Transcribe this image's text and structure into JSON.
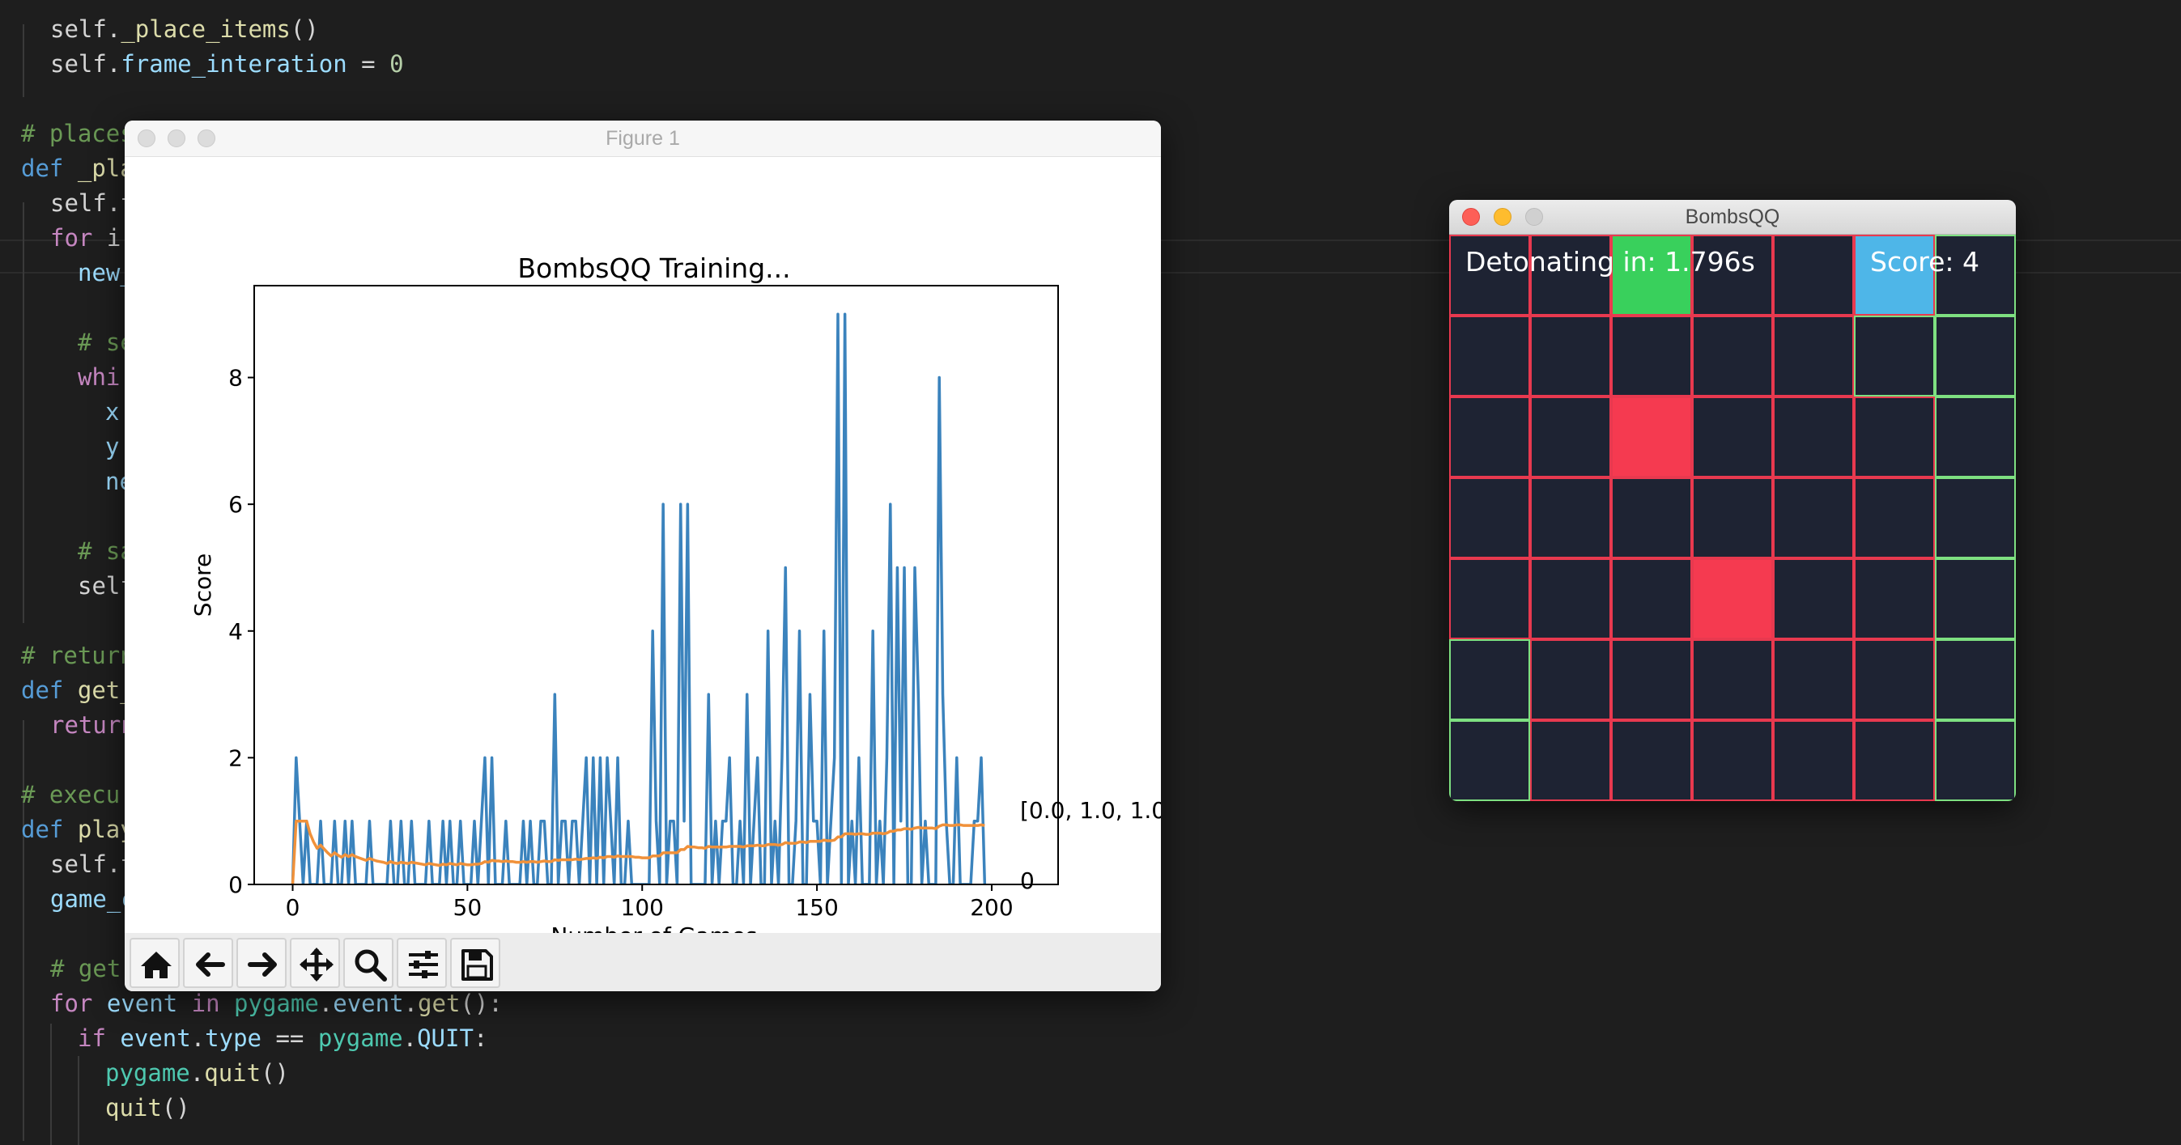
{
  "editor": {
    "lines": [
      [
        [
          "t-self",
          "self"
        ],
        [
          "t-op",
          "."
        ],
        [
          "t-fn",
          "_place_items"
        ],
        [
          "t-op",
          "()"
        ]
      ],
      [
        [
          "t-self",
          "self"
        ],
        [
          "t-op",
          "."
        ],
        [
          "t-var",
          "frame_interation"
        ],
        [
          "t-op",
          " = "
        ],
        [
          "t-num",
          "0"
        ]
      ],
      [],
      [
        [
          "t-cm",
          "# places"
        ]
      ],
      [
        [
          "t-kw",
          "def"
        ],
        [
          "t-op",
          " "
        ],
        [
          "t-fn",
          "_pla"
        ]
      ],
      [
        [
          "t-self",
          "self"
        ],
        [
          "t-op",
          ".t"
        ]
      ],
      [
        [
          "t-ctl",
          "for"
        ],
        [
          "t-op",
          " i"
        ]
      ],
      [
        [
          "t-var",
          "new_"
        ]
      ],
      [],
      [
        [
          "t-cm",
          "# se"
        ]
      ],
      [
        [
          "t-ctl",
          "whi"
        ]
      ],
      [
        [
          "t-var",
          "x"
        ]
      ],
      [
        [
          "t-var",
          "y"
        ]
      ],
      [
        [
          "t-var",
          "ne"
        ]
      ],
      [],
      [
        [
          "t-cm",
          "# sa"
        ]
      ],
      [
        [
          "t-self",
          "self"
        ]
      ],
      [],
      [
        [
          "t-cm",
          "# return"
        ]
      ],
      [
        [
          "t-kw",
          "def"
        ],
        [
          "t-op",
          " "
        ],
        [
          "t-fn",
          "get_"
        ]
      ],
      [
        [
          "t-ctl",
          "return"
        ]
      ],
      [],
      [
        [
          "t-cm",
          "# execu"
        ]
      ],
      [
        [
          "t-kw",
          "def"
        ],
        [
          "t-op",
          " "
        ],
        [
          "t-fn",
          "play"
        ]
      ],
      [
        [
          "t-self",
          "self"
        ],
        [
          "t-op",
          ".t"
        ]
      ],
      [
        [
          "t-var",
          "game_c"
        ]
      ],
      [],
      [
        [
          "t-cm",
          "# get user input"
        ]
      ],
      [
        [
          "t-ctl",
          "for"
        ],
        [
          "t-op",
          " "
        ],
        [
          "t-var",
          "event"
        ],
        [
          "t-op",
          " "
        ],
        [
          "t-ctl",
          "in"
        ],
        [
          "t-op",
          " "
        ],
        [
          "t-cls",
          "pygame"
        ],
        [
          "t-op",
          "."
        ],
        [
          "t-var",
          "event"
        ],
        [
          "t-op",
          "."
        ],
        [
          "t-fn",
          "get"
        ],
        [
          "t-op",
          "():"
        ]
      ],
      [
        [
          "t-ctl",
          "if"
        ],
        [
          "t-op",
          " "
        ],
        [
          "t-var",
          "event"
        ],
        [
          "t-op",
          "."
        ],
        [
          "t-var",
          "type"
        ],
        [
          "t-op",
          " == "
        ],
        [
          "t-cls",
          "pygame"
        ],
        [
          "t-op",
          "."
        ],
        [
          "t-var",
          "QUIT"
        ],
        [
          "t-op",
          ":"
        ]
      ],
      [
        [
          "t-cls",
          "pygame"
        ],
        [
          "t-op",
          "."
        ],
        [
          "t-fn",
          "quit"
        ],
        [
          "t-op",
          "()"
        ]
      ],
      [
        [
          "t-fn",
          "quit"
        ],
        [
          "t-op",
          "()"
        ]
      ]
    ]
  },
  "figure": {
    "window_title": "Figure 1",
    "toolbar": [
      "home-icon",
      "back-arrow-icon",
      "forward-arrow-icon",
      "pan-icon",
      "zoom-icon",
      "configure-subplots-icon",
      "save-icon"
    ]
  },
  "chart_data": {
    "type": "line",
    "title": "BombsQQ Training...",
    "xlabel": "Number of Games",
    "ylabel": "Score",
    "xlim": [
      -11,
      219
    ],
    "ylim": [
      0,
      9.45
    ],
    "xticks": [
      0,
      50,
      100,
      150,
      200
    ],
    "yticks": [
      0,
      2,
      4,
      6,
      8
    ],
    "annotations": [
      "[0.0, 1.0, 1.0",
      "0"
    ],
    "series": [
      {
        "color": "#3b83bd",
        "values": [
          0,
          2,
          1,
          0,
          1,
          0,
          0,
          0,
          1,
          0,
          0,
          0,
          1,
          0,
          0,
          1,
          0,
          1,
          0,
          0,
          0,
          0,
          1,
          0,
          0,
          0,
          0,
          0,
          1,
          0,
          0,
          1,
          0,
          0,
          1,
          0,
          0,
          0,
          0,
          1,
          0,
          0,
          0,
          1,
          0,
          1,
          0,
          0,
          1,
          0,
          0,
          0,
          1,
          0,
          1,
          2,
          0,
          2,
          0,
          0,
          0,
          1,
          0,
          0,
          0,
          0,
          1,
          0,
          1,
          0,
          0,
          1,
          1,
          0,
          0,
          3,
          0,
          1,
          1,
          0,
          1,
          1,
          0,
          1,
          2,
          0,
          2,
          0,
          2,
          0,
          2,
          1,
          0,
          2,
          0,
          0,
          1,
          0,
          0,
          0,
          0,
          0,
          0,
          4,
          1,
          0,
          6,
          0,
          1,
          1,
          0,
          6,
          1,
          6,
          0,
          0,
          0,
          0,
          0,
          3,
          0,
          1,
          0,
          1,
          1,
          2,
          0,
          0,
          1,
          0,
          3,
          0,
          1,
          2,
          0,
          0,
          4,
          0,
          1,
          0,
          2,
          5,
          0,
          0,
          1,
          4,
          0,
          0,
          3,
          1,
          1,
          0,
          4,
          0,
          1,
          2,
          9,
          0,
          9,
          0,
          1,
          0,
          2,
          0,
          0,
          0,
          4,
          0,
          1,
          0,
          2,
          6,
          0,
          5,
          1,
          5,
          0,
          0,
          5,
          3,
          0,
          1,
          0,
          0,
          0,
          8,
          3,
          1,
          0,
          0,
          2,
          0,
          0,
          0,
          0,
          1,
          1,
          2,
          0
        ],
        "mean": [
          0,
          1,
          1,
          1,
          1,
          0.8,
          0.67,
          0.57,
          0.62,
          0.56,
          0.5,
          0.45,
          0.5,
          0.46,
          0.43,
          0.47,
          0.44,
          0.47,
          0.44,
          0.42,
          0.4,
          0.38,
          0.41,
          0.39,
          0.37,
          0.36,
          0.35,
          0.33,
          0.36,
          0.34,
          0.33,
          0.35,
          0.34,
          0.33,
          0.35,
          0.34,
          0.33,
          0.32,
          0.31,
          0.33,
          0.32,
          0.31,
          0.3,
          0.32,
          0.31,
          0.33,
          0.32,
          0.31,
          0.33,
          0.32,
          0.31,
          0.31,
          0.32,
          0.32,
          0.33,
          0.36,
          0.35,
          0.38,
          0.37,
          0.37,
          0.36,
          0.37,
          0.36,
          0.36,
          0.35,
          0.35,
          0.36,
          0.35,
          0.36,
          0.36,
          0.35,
          0.36,
          0.37,
          0.36,
          0.36,
          0.39,
          0.38,
          0.39,
          0.39,
          0.39,
          0.39,
          0.4,
          0.39,
          0.4,
          0.41,
          0.41,
          0.42,
          0.41,
          0.43,
          0.42,
          0.44,
          0.44,
          0.43,
          0.45,
          0.44,
          0.44,
          0.44,
          0.44,
          0.43,
          0.43,
          0.42,
          0.42,
          0.42,
          0.45,
          0.45,
          0.45,
          0.5,
          0.5,
          0.5,
          0.5,
          0.5,
          0.55,
          0.55,
          0.6,
          0.59,
          0.59,
          0.58,
          0.58,
          0.57,
          0.6,
          0.59,
          0.59,
          0.59,
          0.59,
          0.59,
          0.6,
          0.6,
          0.6,
          0.6,
          0.59,
          0.61,
          0.61,
          0.61,
          0.62,
          0.61,
          0.61,
          0.63,
          0.63,
          0.63,
          0.62,
          0.63,
          0.66,
          0.65,
          0.65,
          0.65,
          0.67,
          0.67,
          0.66,
          0.68,
          0.68,
          0.68,
          0.68,
          0.7,
          0.69,
          0.69,
          0.7,
          0.75,
          0.75,
          0.8,
          0.8,
          0.8,
          0.79,
          0.8,
          0.8,
          0.79,
          0.79,
          0.81,
          0.81,
          0.81,
          0.8,
          0.81,
          0.84,
          0.84,
          0.86,
          0.86,
          0.88,
          0.88,
          0.87,
          0.89,
          0.9,
          0.89,
          0.89,
          0.89,
          0.89,
          0.88,
          0.92,
          0.94,
          0.94,
          0.93,
          0.93,
          0.94,
          0.94,
          0.93,
          0.93,
          0.93,
          0.93,
          0.93,
          0.94,
          0.93
        ]
      },
      {
        "color": "#f0913a",
        "name": ""
      }
    ]
  },
  "game": {
    "window_title": "BombsQQ",
    "detonating_text": "Detonating in: 1.796s",
    "score_text": "Score: 4",
    "grid_size": 7,
    "colors": {
      "background": "#1e2333",
      "grid_line": "#e8394f",
      "safe_line": "#7ee081",
      "bomb": "#f53a50",
      "goal": "#39d05c",
      "player": "#4eb6e8"
    },
    "special_cells": [
      {
        "row": 0,
        "col": 2,
        "kind": "goal"
      },
      {
        "row": 0,
        "col": 5,
        "kind": "player"
      },
      {
        "row": 2,
        "col": 2,
        "kind": "bomb"
      },
      {
        "row": 4,
        "col": 3,
        "kind": "bomb"
      }
    ],
    "safe_cells": [
      [
        0,
        6
      ],
      [
        1,
        5
      ],
      [
        1,
        6
      ],
      [
        2,
        6
      ],
      [
        3,
        6
      ],
      [
        4,
        6
      ],
      [
        5,
        0
      ],
      [
        5,
        6
      ],
      [
        6,
        0
      ],
      [
        6,
        6
      ]
    ]
  }
}
